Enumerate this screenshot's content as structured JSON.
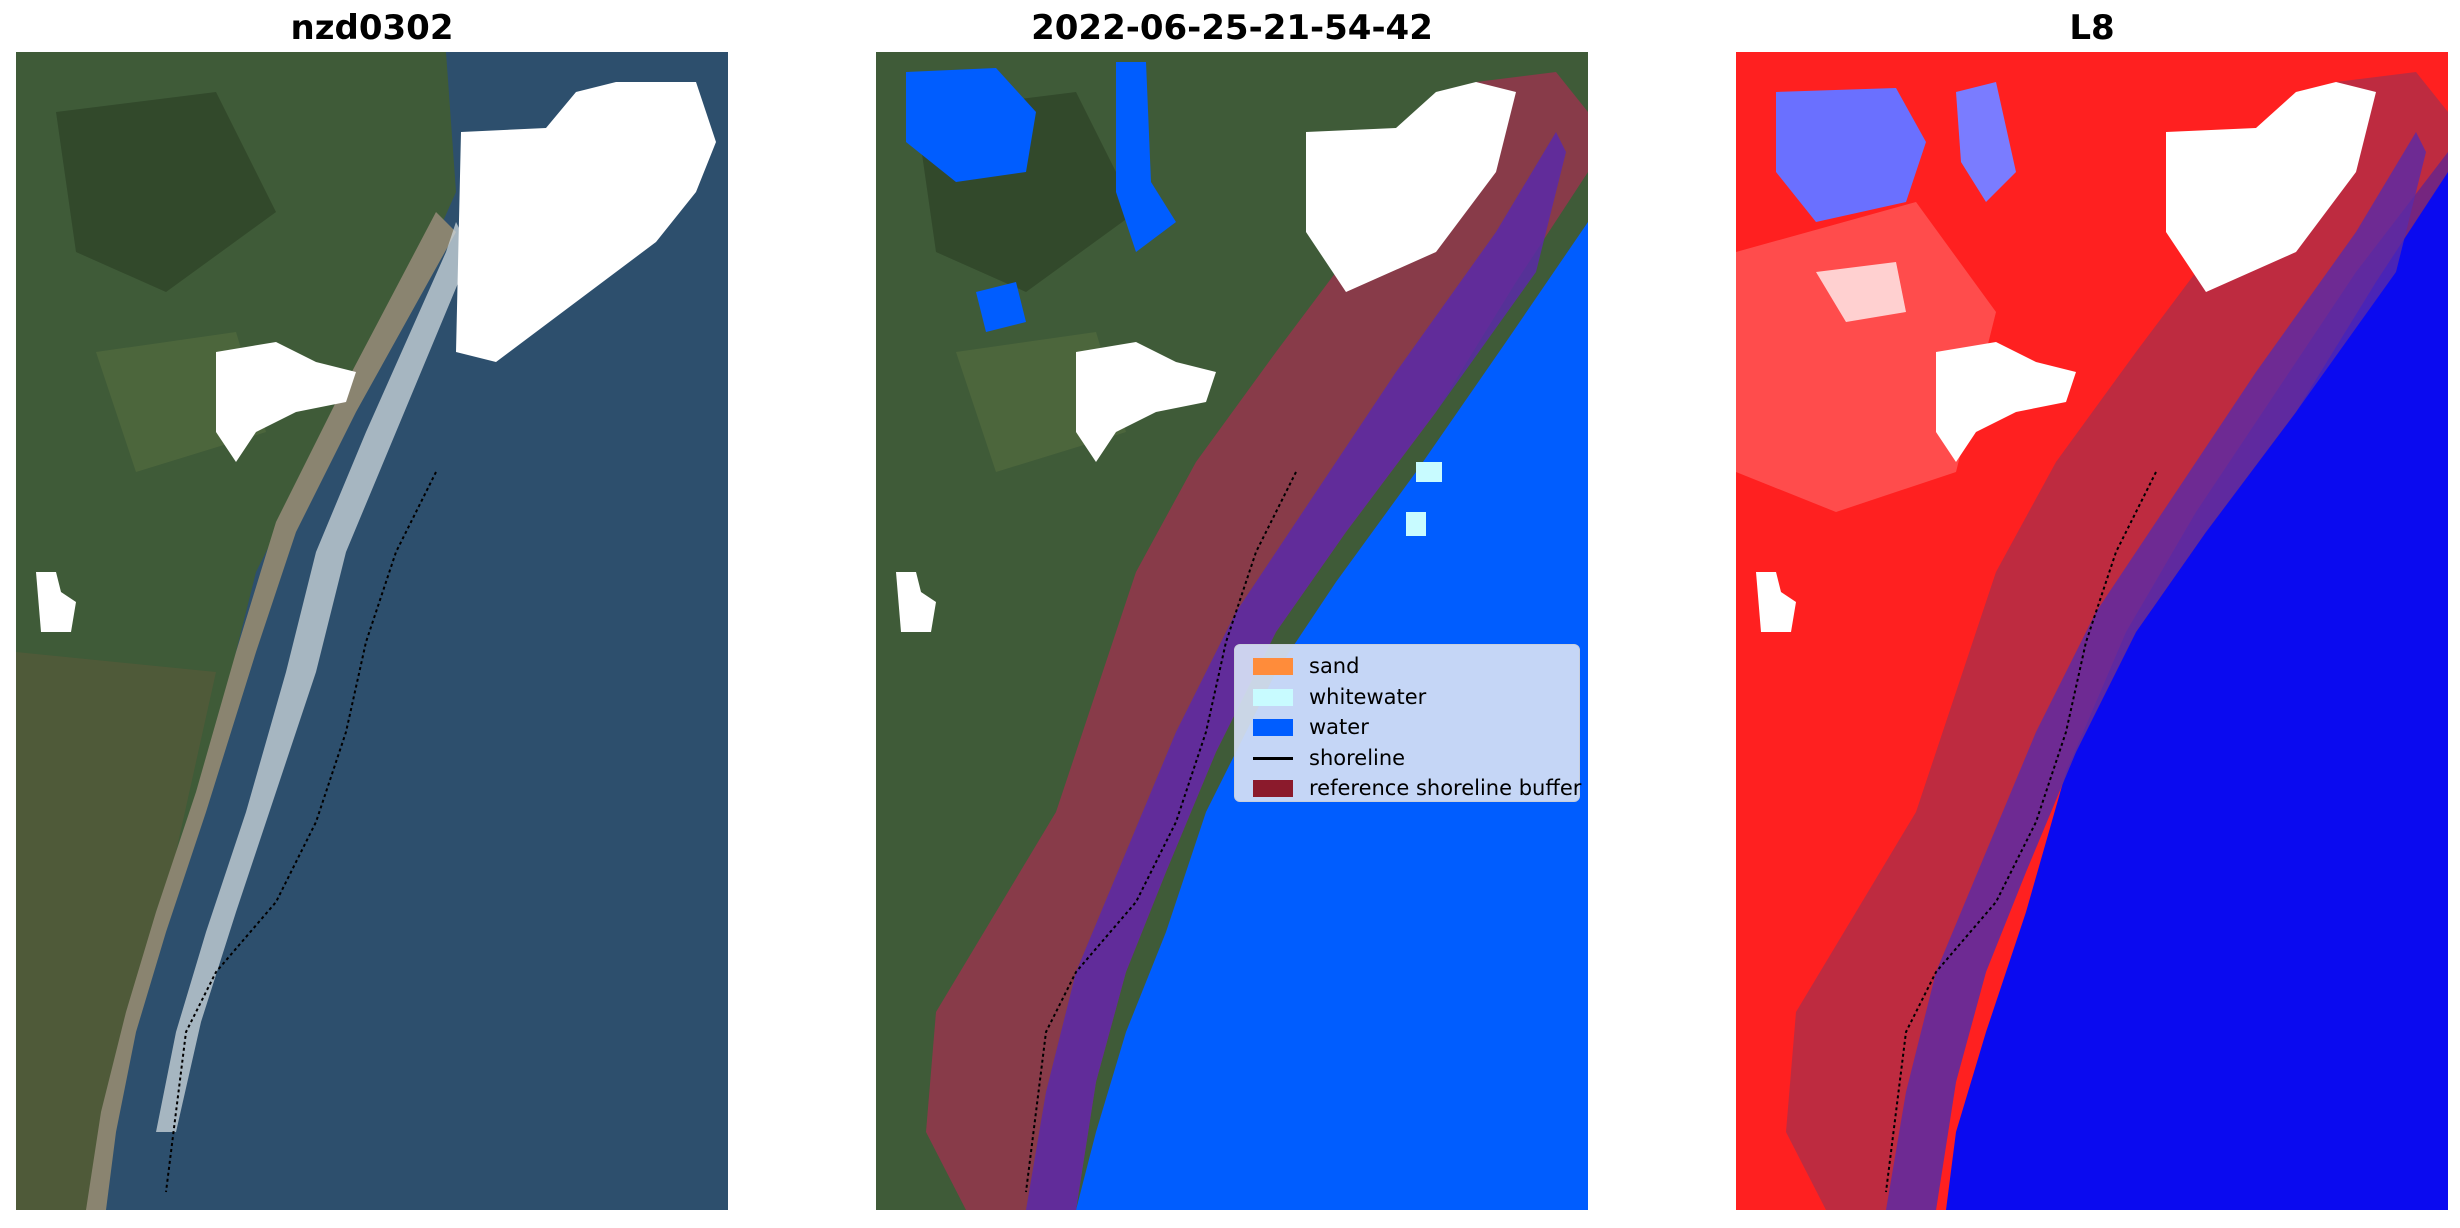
{
  "panels": [
    {
      "title": "nzd0302"
    },
    {
      "title": "2022-06-25-21-54-42"
    },
    {
      "title": "L8"
    }
  ],
  "legend": {
    "items": [
      {
        "label": "sand",
        "type": "patch",
        "color": "#ff8c3a"
      },
      {
        "label": "whitewater",
        "type": "patch",
        "color": "#c8fbff"
      },
      {
        "label": "water",
        "type": "patch",
        "color": "#005dff"
      },
      {
        "label": "shoreline",
        "type": "line",
        "color": "#000000"
      },
      {
        "label": "reference shoreline buffer",
        "type": "patch",
        "color": "#8b1a2c"
      }
    ]
  },
  "colors": {
    "land": "#3d5a3a",
    "sea": "#2d4f6d",
    "cloud": "#ffffff",
    "water_class": "#005dff",
    "buffer": "#a2304f",
    "ndwi_land": "#ff2020",
    "ndwi_water": "#0a0af0"
  }
}
